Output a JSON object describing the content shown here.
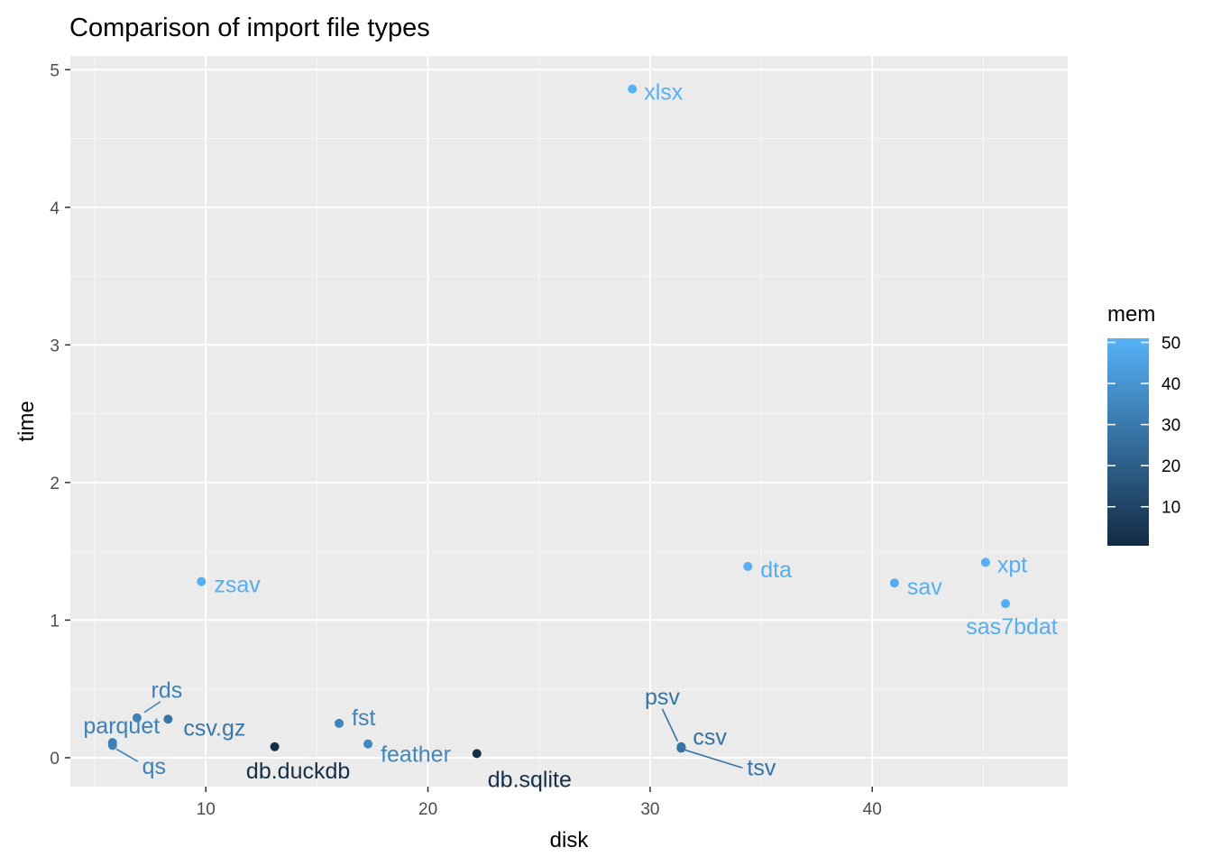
{
  "chart_data": {
    "type": "scatter",
    "title": "Comparison of import file types",
    "xlabel": "disk",
    "ylabel": "time",
    "xlim": [
      3.9,
      48.8
    ],
    "ylim": [
      -0.21,
      5.1
    ],
    "x_ticks": [
      10,
      20,
      30,
      40
    ],
    "y_ticks": [
      0,
      1,
      2,
      3,
      4,
      5
    ],
    "grid": true,
    "color_legend": {
      "title": "mem",
      "ticks": [
        10,
        20,
        30,
        40,
        50
      ],
      "range": [
        0.5,
        51
      ],
      "low_color": "#132b43",
      "high_color": "#56b1f7",
      "position": "right"
    },
    "points": [
      {
        "label": "xlsx",
        "disk": 29.2,
        "time": 4.86,
        "mem": 51
      },
      {
        "label": "zsav",
        "disk": 9.8,
        "time": 1.28,
        "mem": 50
      },
      {
        "label": "dta",
        "disk": 34.4,
        "time": 1.39,
        "mem": 50
      },
      {
        "label": "sav",
        "disk": 41.0,
        "time": 1.27,
        "mem": 50
      },
      {
        "label": "xpt",
        "disk": 45.1,
        "time": 1.42,
        "mem": 50
      },
      {
        "label": "sas7bdat",
        "disk": 46.0,
        "time": 1.12,
        "mem": 50
      },
      {
        "label": "rds",
        "disk": 6.9,
        "time": 0.29,
        "mem": 33
      },
      {
        "label": "csv.gz",
        "disk": 8.3,
        "time": 0.28,
        "mem": 29
      },
      {
        "label": "parquet",
        "disk": 5.8,
        "time": 0.11,
        "mem": 33
      },
      {
        "label": "qs",
        "disk": 5.8,
        "time": 0.09,
        "mem": 33
      },
      {
        "label": "fst",
        "disk": 16.0,
        "time": 0.25,
        "mem": 34
      },
      {
        "label": "feather",
        "disk": 17.3,
        "time": 0.1,
        "mem": 35
      },
      {
        "label": "db.duckdb",
        "disk": 13.1,
        "time": 0.08,
        "mem": 2
      },
      {
        "label": "db.sqlite",
        "disk": 22.2,
        "time": 0.03,
        "mem": 2
      },
      {
        "label": "psv",
        "disk": 31.4,
        "time": 0.08,
        "mem": 28
      },
      {
        "label": "csv",
        "disk": 31.4,
        "time": 0.07,
        "mem": 27
      },
      {
        "label": "tsv",
        "disk": 31.4,
        "time": 0.07,
        "mem": 28
      }
    ]
  }
}
